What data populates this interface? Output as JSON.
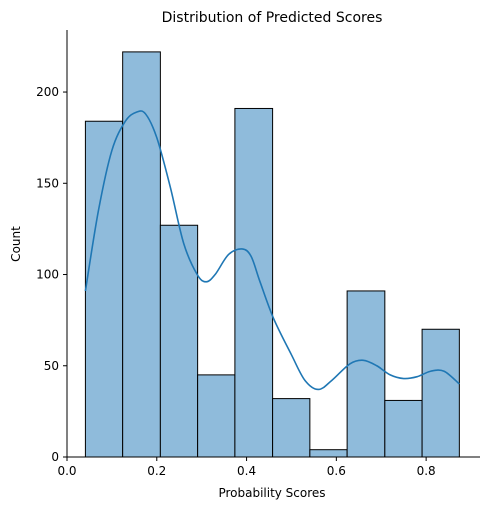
{
  "chart_data": {
    "type": "bar",
    "title": "Distribution of Predicted Scores",
    "xlabel": "Probability Scores",
    "ylabel": "Count",
    "xlim": [
      0.0,
      0.92
    ],
    "ylim": [
      0,
      234
    ],
    "xticks": [
      0.0,
      0.2,
      0.4,
      0.6,
      0.8
    ],
    "xtick_labels": [
      "0.0",
      "0.2",
      "0.4",
      "0.6",
      "0.8"
    ],
    "yticks": [
      0,
      50,
      100,
      150,
      200
    ],
    "ytick_labels": [
      "0",
      "50",
      "100",
      "150",
      "200"
    ],
    "bins": [
      {
        "x0": 0.041,
        "x1": 0.124,
        "count": 184
      },
      {
        "x0": 0.124,
        "x1": 0.208,
        "count": 222
      },
      {
        "x0": 0.208,
        "x1": 0.291,
        "count": 127
      },
      {
        "x0": 0.291,
        "x1": 0.374,
        "count": 45
      },
      {
        "x0": 0.374,
        "x1": 0.458,
        "count": 191
      },
      {
        "x0": 0.458,
        "x1": 0.541,
        "count": 32
      },
      {
        "x0": 0.541,
        "x1": 0.624,
        "count": 4
      },
      {
        "x0": 0.624,
        "x1": 0.708,
        "count": 91
      },
      {
        "x0": 0.708,
        "x1": 0.791,
        "count": 31
      },
      {
        "x0": 0.791,
        "x1": 0.874,
        "count": 70
      }
    ],
    "kde": {
      "x": [
        0.041,
        0.07,
        0.1,
        0.13,
        0.155,
        0.175,
        0.2,
        0.23,
        0.26,
        0.29,
        0.31,
        0.33,
        0.36,
        0.39,
        0.41,
        0.43,
        0.46,
        0.5,
        0.53,
        0.56,
        0.59,
        0.63,
        0.66,
        0.69,
        0.72,
        0.75,
        0.78,
        0.81,
        0.84,
        0.874
      ],
      "y": [
        91,
        135,
        168,
        184,
        189,
        188,
        175,
        148,
        117,
        100,
        96,
        100,
        111,
        114,
        110,
        96,
        76,
        56,
        42,
        37,
        42,
        51,
        53,
        50,
        45,
        43,
        44,
        47,
        47,
        40
      ]
    },
    "bar_color": "#8fbbdb",
    "bar_edge_color": "#000000",
    "kde_color": "#1f77b4",
    "grid": false
  }
}
